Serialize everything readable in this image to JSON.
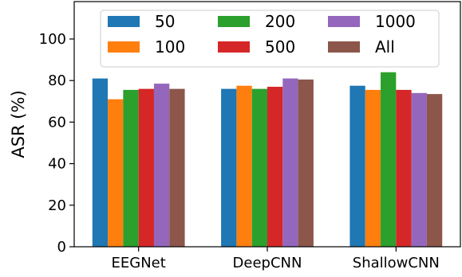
{
  "chart_data": {
    "type": "bar",
    "title": "",
    "xlabel": "",
    "ylabel": "ASR (%)",
    "ylim": [
      0,
      118
    ],
    "yticks": [
      0,
      20,
      40,
      60,
      80,
      100
    ],
    "grid": false,
    "legend_position": "top",
    "categories": [
      "EEGNet",
      "DeepCNN",
      "ShallowCNN"
    ],
    "series": [
      {
        "name": "50",
        "color": "#1f77b4",
        "values": [
          81.0,
          76.0,
          77.5
        ]
      },
      {
        "name": "100",
        "color": "#ff7f0e",
        "values": [
          71.0,
          77.5,
          75.5
        ]
      },
      {
        "name": "200",
        "color": "#2ca02c",
        "values": [
          75.5,
          76.0,
          84.0
        ]
      },
      {
        "name": "500",
        "color": "#d62728",
        "values": [
          76.0,
          77.0,
          75.5
        ]
      },
      {
        "name": "1000",
        "color": "#9467bd",
        "values": [
          78.5,
          81.0,
          74.0
        ]
      },
      {
        "name": "All",
        "color": "#8c564b",
        "values": [
          76.0,
          80.5,
          73.5
        ]
      }
    ]
  }
}
